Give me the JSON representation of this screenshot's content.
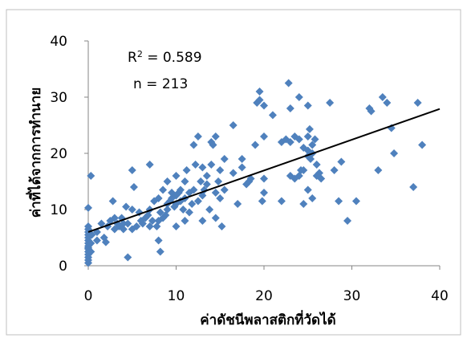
{
  "chart_data": {
    "type": "scatter",
    "title": "",
    "xlabel": "ค่าดัชนีพลาสติกที่วัดได้",
    "ylabel": "ค่าที่ได้จากการทำนาย",
    "xlim": [
      0,
      40
    ],
    "ylim": [
      0,
      40
    ],
    "xticks": [
      "0",
      "10",
      "20",
      "30",
      "40"
    ],
    "yticks": [
      "0",
      "10",
      "20",
      "30",
      "40"
    ],
    "grid": false,
    "legend": "none",
    "marker_color": "#4F81BD",
    "trendline_color": "#000000",
    "annotations": {
      "r2_prefix": "R",
      "r2_sup": "2",
      "r2_value": " = 0.589",
      "n_text": "n = 213"
    },
    "trendline": {
      "x": [
        0,
        40
      ],
      "y": [
        6.0,
        27.9
      ]
    },
    "points": [
      [
        0,
        0.5
      ],
      [
        0,
        1
      ],
      [
        0,
        1.5
      ],
      [
        0,
        2
      ],
      [
        0,
        2.5
      ],
      [
        0,
        3
      ],
      [
        0,
        3.2
      ],
      [
        0,
        3.5
      ],
      [
        0,
        4
      ],
      [
        0,
        4.5
      ],
      [
        0,
        5
      ],
      [
        0,
        5.5
      ],
      [
        0,
        6
      ],
      [
        0,
        6.5
      ],
      [
        0,
        7
      ],
      [
        0,
        10.3
      ],
      [
        0.3,
        2.5
      ],
      [
        0.3,
        4
      ],
      [
        0.4,
        5.5
      ],
      [
        0.3,
        16
      ],
      [
        1,
        4.5
      ],
      [
        1,
        6
      ],
      [
        1.5,
        7.5
      ],
      [
        1.8,
        5
      ],
      [
        2,
        4.2
      ],
      [
        2.2,
        7
      ],
      [
        2.5,
        8
      ],
      [
        2.8,
        11.5
      ],
      [
        3,
        6.5
      ],
      [
        3,
        8.5
      ],
      [
        3.3,
        7.5
      ],
      [
        3.5,
        7
      ],
      [
        3.8,
        8.5
      ],
      [
        4,
        6.5
      ],
      [
        4,
        7.5
      ],
      [
        4.3,
        10.5
      ],
      [
        4.5,
        1.5
      ],
      [
        4.5,
        7.5
      ],
      [
        5,
        6.5
      ],
      [
        5,
        10
      ],
      [
        5,
        17
      ],
      [
        5.2,
        14
      ],
      [
        5.5,
        7
      ],
      [
        5.8,
        9.5
      ],
      [
        6,
        8
      ],
      [
        6.2,
        7.5
      ],
      [
        6.5,
        8.5
      ],
      [
        6.8,
        9
      ],
      [
        7,
        7
      ],
      [
        7,
        10
      ],
      [
        7,
        18
      ],
      [
        7.3,
        8
      ],
      [
        7.5,
        11.5
      ],
      [
        7.8,
        7
      ],
      [
        8,
        4.5
      ],
      [
        8,
        8
      ],
      [
        8,
        12
      ],
      [
        8.2,
        2.5
      ],
      [
        8.2,
        9.5
      ],
      [
        8.5,
        8.5
      ],
      [
        8.5,
        13.5
      ],
      [
        8.8,
        9
      ],
      [
        9,
        10
      ],
      [
        9,
        11
      ],
      [
        9,
        15
      ],
      [
        9.3,
        11.5
      ],
      [
        9.5,
        12
      ],
      [
        9.5,
        13
      ],
      [
        9.8,
        10.5
      ],
      [
        10,
        7
      ],
      [
        10,
        11
      ],
      [
        10,
        12.5
      ],
      [
        10,
        16
      ],
      [
        10.3,
        13
      ],
      [
        10.5,
        11.5
      ],
      [
        10.5,
        13.5
      ],
      [
        10.8,
        10
      ],
      [
        11,
        8
      ],
      [
        11,
        12
      ],
      [
        11,
        15
      ],
      [
        11.2,
        17
      ],
      [
        11.5,
        9.5
      ],
      [
        11.5,
        13
      ],
      [
        11.8,
        11
      ],
      [
        12,
        13.5
      ],
      [
        12,
        21.5
      ],
      [
        12.2,
        18
      ],
      [
        12.5,
        11.5
      ],
      [
        12.5,
        23
      ],
      [
        12.8,
        15
      ],
      [
        13,
        8
      ],
      [
        13,
        12.5
      ],
      [
        13,
        17.5
      ],
      [
        13.2,
        13.5
      ],
      [
        13.5,
        14.5
      ],
      [
        13.5,
        16
      ],
      [
        13.8,
        10
      ],
      [
        14,
        18
      ],
      [
        14,
        22
      ],
      [
        14.2,
        21.5
      ],
      [
        14.5,
        8.5
      ],
      [
        14.5,
        13
      ],
      [
        14.5,
        23
      ],
      [
        14.8,
        15
      ],
      [
        15,
        12
      ],
      [
        15,
        17
      ],
      [
        15.2,
        7
      ],
      [
        15.5,
        13.5
      ],
      [
        15.5,
        19
      ],
      [
        16.5,
        25
      ],
      [
        16.5,
        16.5
      ],
      [
        17,
        11
      ],
      [
        17.5,
        17.5
      ],
      [
        17.5,
        19
      ],
      [
        18,
        14.5
      ],
      [
        18.3,
        15
      ],
      [
        18.5,
        15.5
      ],
      [
        19,
        21.5
      ],
      [
        19.2,
        29
      ],
      [
        19.5,
        29.5
      ],
      [
        19.5,
        31
      ],
      [
        19.8,
        11.5
      ],
      [
        20,
        13
      ],
      [
        20,
        23
      ],
      [
        20,
        15.5
      ],
      [
        20,
        28.5
      ],
      [
        21,
        26.8
      ],
      [
        22,
        22
      ],
      [
        22,
        11.5
      ],
      [
        22.5,
        22.5
      ],
      [
        22.8,
        32.5
      ],
      [
        23,
        16
      ],
      [
        23,
        22
      ],
      [
        23,
        28
      ],
      [
        23.5,
        15.5
      ],
      [
        23.5,
        23
      ],
      [
        24,
        16
      ],
      [
        24,
        22.5
      ],
      [
        24,
        30
      ],
      [
        24.2,
        17
      ],
      [
        24.5,
        17
      ],
      [
        24.5,
        11
      ],
      [
        24.5,
        21
      ],
      [
        25,
        20.5
      ],
      [
        25,
        19.5
      ],
      [
        25,
        13.5
      ],
      [
        25,
        23
      ],
      [
        25,
        28.5
      ],
      [
        25.2,
        24.3
      ],
      [
        25.3,
        19
      ],
      [
        25.5,
        20
      ],
      [
        25.5,
        12
      ],
      [
        25.5,
        21.5
      ],
      [
        25.8,
        22.5
      ],
      [
        26,
        16
      ],
      [
        26,
        18
      ],
      [
        26.3,
        16.5
      ],
      [
        26.5,
        15.5
      ],
      [
        27.5,
        29
      ],
      [
        28,
        17
      ],
      [
        28.5,
        11.5
      ],
      [
        28.8,
        18.5
      ],
      [
        29.5,
        8
      ],
      [
        30.5,
        11.5
      ],
      [
        32,
        28
      ],
      [
        32.2,
        27.5
      ],
      [
        33,
        17
      ],
      [
        33.5,
        30
      ],
      [
        34,
        29
      ],
      [
        34.5,
        24.5
      ],
      [
        34.8,
        20
      ],
      [
        37,
        14
      ],
      [
        37.5,
        29
      ],
      [
        38,
        21.5
      ]
    ]
  }
}
